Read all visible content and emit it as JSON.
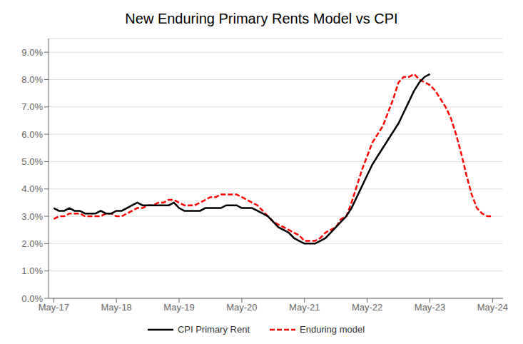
{
  "chart_data": {
    "type": "line",
    "title": "New Enduring Primary Rents Model vs CPI",
    "x": [
      0,
      1,
      2,
      3,
      4,
      5,
      6,
      7,
      8,
      9,
      10,
      11,
      12,
      13,
      14,
      15,
      16,
      17,
      18,
      19,
      20,
      21,
      22,
      23,
      24,
      25,
      26,
      27,
      28,
      29,
      30,
      31,
      32,
      33,
      34,
      35,
      36,
      37,
      38,
      39,
      40,
      41,
      42,
      43,
      44,
      45,
      46,
      47,
      48,
      49,
      50,
      51,
      52,
      53,
      54,
      55,
      56,
      57,
      58,
      59,
      60,
      61,
      62,
      63,
      64,
      65,
      66,
      67,
      68,
      69,
      70,
      71,
      72,
      73,
      74,
      75,
      76,
      77,
      78,
      79,
      80,
      81,
      82,
      83,
      84
    ],
    "series": [
      {
        "name": "CPI Primary Rent",
        "color": "#000000",
        "line_style": "solid",
        "values": [
          0.033,
          0.032,
          0.032,
          0.033,
          0.032,
          0.032,
          0.031,
          0.031,
          0.031,
          0.032,
          0.031,
          0.031,
          0.032,
          0.032,
          0.033,
          0.034,
          0.035,
          0.034,
          0.034,
          0.034,
          0.034,
          0.034,
          0.034,
          0.035,
          0.033,
          0.032,
          0.032,
          0.032,
          0.032,
          0.033,
          0.033,
          0.033,
          0.033,
          0.034,
          0.034,
          0.034,
          0.033,
          0.033,
          0.033,
          0.032,
          0.031,
          0.03,
          0.028,
          0.026,
          0.025,
          0.024,
          0.022,
          0.021,
          0.02,
          0.02,
          0.02,
          0.021,
          0.022,
          0.024,
          0.026,
          0.028,
          0.03,
          0.033,
          0.037,
          0.041,
          0.045,
          0.049,
          0.052,
          0.055,
          0.058,
          0.061,
          0.064,
          0.068,
          0.072,
          0.076,
          0.079,
          0.081,
          0.082,
          null,
          null,
          null,
          null,
          null,
          null,
          null,
          null,
          null,
          null,
          null,
          null
        ]
      },
      {
        "name": "Enduring model",
        "color": "#FF0000",
        "line_style": "dashed",
        "values": [
          0.029,
          0.03,
          0.03,
          0.031,
          0.031,
          0.031,
          0.03,
          0.03,
          0.03,
          0.03,
          0.031,
          0.031,
          0.03,
          0.03,
          0.031,
          0.032,
          0.033,
          0.033,
          0.034,
          0.034,
          0.035,
          0.035,
          0.036,
          0.036,
          0.035,
          0.034,
          0.034,
          0.034,
          0.035,
          0.036,
          0.037,
          0.037,
          0.038,
          0.038,
          0.038,
          0.038,
          0.037,
          0.036,
          0.035,
          0.034,
          0.032,
          0.03,
          0.028,
          0.027,
          0.026,
          0.025,
          0.024,
          0.023,
          0.021,
          0.021,
          0.021,
          0.022,
          0.024,
          0.025,
          0.026,
          0.029,
          0.03,
          0.035,
          0.041,
          0.047,
          0.052,
          0.057,
          0.06,
          0.063,
          0.068,
          0.073,
          0.079,
          0.081,
          0.081,
          0.082,
          0.08,
          0.079,
          0.078,
          0.076,
          0.073,
          0.07,
          0.066,
          0.06,
          0.053,
          0.045,
          0.038,
          0.033,
          0.031,
          0.03,
          0.03
        ]
      }
    ],
    "xlim": [
      -1,
      86
    ],
    "xticks": [
      {
        "value": 0,
        "label": "May-17"
      },
      {
        "value": 12,
        "label": "May-18"
      },
      {
        "value": 24,
        "label": "May-19"
      },
      {
        "value": 36,
        "label": "May-20"
      },
      {
        "value": 48,
        "label": "May-21"
      },
      {
        "value": 60,
        "label": "May-22"
      },
      {
        "value": 72,
        "label": "May-23"
      },
      {
        "value": 84,
        "label": "May-24"
      }
    ],
    "ylim": [
      0.0,
      0.095
    ],
    "yticks": [
      {
        "value": 0.0,
        "label": "0.0%"
      },
      {
        "value": 0.01,
        "label": "1.0%"
      },
      {
        "value": 0.02,
        "label": "2.0%"
      },
      {
        "value": 0.03,
        "label": "3.0%"
      },
      {
        "value": 0.04,
        "label": "4.0%"
      },
      {
        "value": 0.05,
        "label": "5.0%"
      },
      {
        "value": 0.06,
        "label": "6.0%"
      },
      {
        "value": 0.07,
        "label": "7.0%"
      },
      {
        "value": 0.08,
        "label": "8.0%"
      },
      {
        "value": 0.09,
        "label": "9.0%"
      }
    ],
    "grid": true,
    "legend": "bottom"
  }
}
